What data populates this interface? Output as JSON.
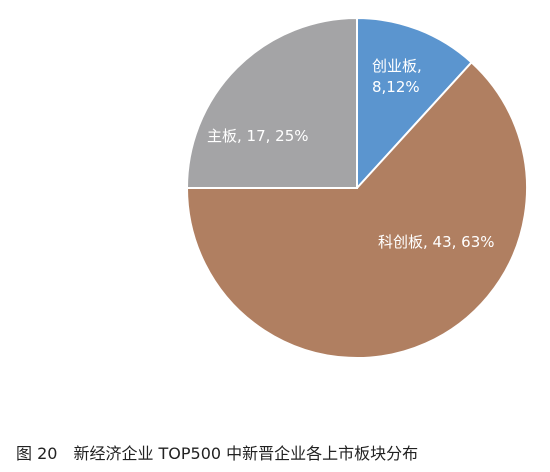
{
  "chart_data": {
    "type": "pie",
    "title": "图 20　新经济企业 TOP500 中新晋企业各上市板块分布",
    "values": [
      8,
      43,
      17
    ],
    "value_labels": [
      "创业板, 8,12%",
      "科创板, 43, 63%",
      "主板, 17, 25%"
    ],
    "colors": [
      "#5b95cf",
      "#b07f61",
      "#a4a4a6"
    ]
  }
}
